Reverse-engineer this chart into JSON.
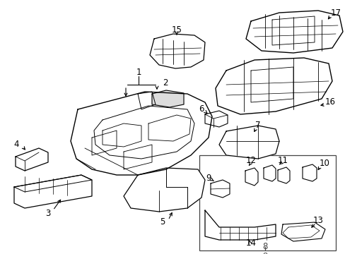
{
  "bg_color": "#ffffff",
  "line_color": "#000000",
  "fig_width": 4.89,
  "fig_height": 3.6,
  "dpi": 100,
  "xlim": [
    0,
    489
  ],
  "ylim": [
    0,
    360
  ]
}
